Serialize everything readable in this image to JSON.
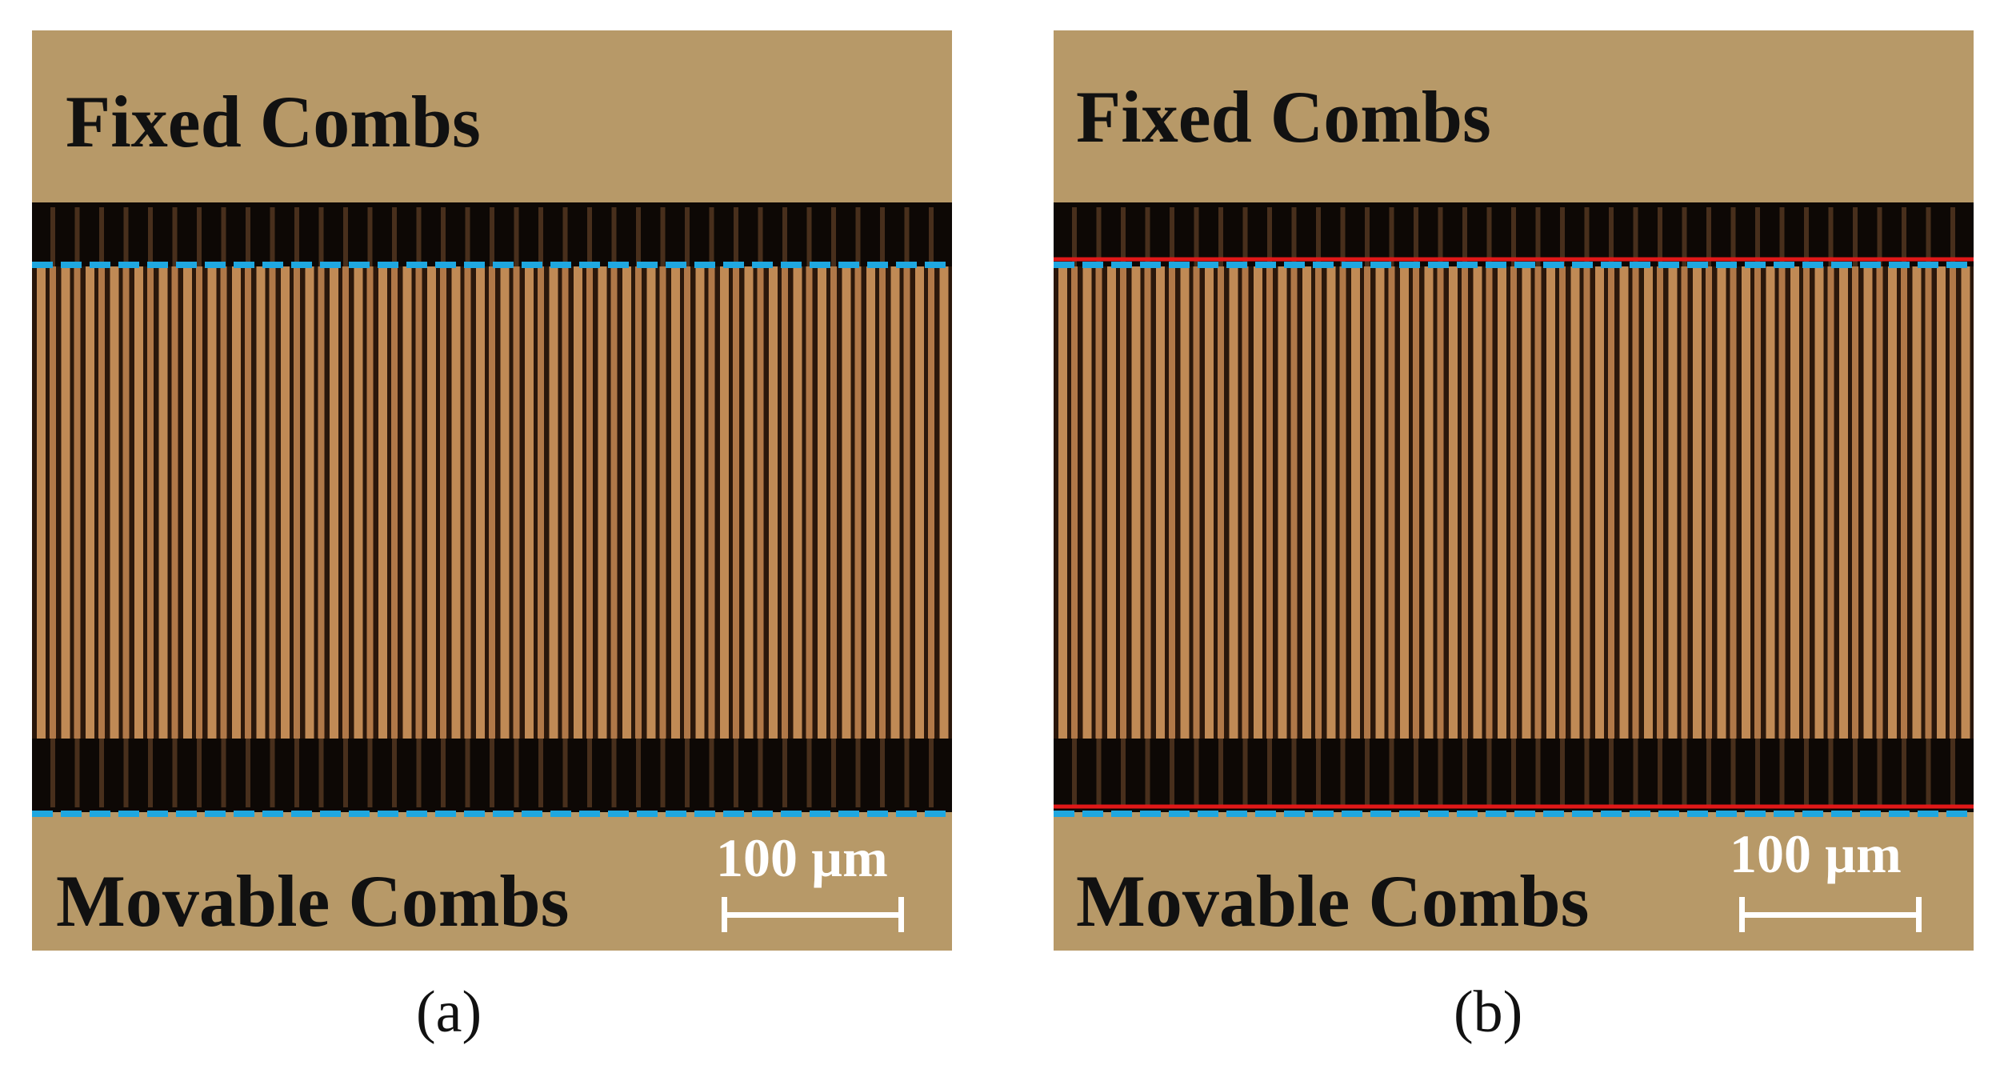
{
  "figure": {
    "panels": [
      {
        "id": "a",
        "top_label": "Fixed Combs",
        "bottom_label": "Movable Combs",
        "scale_bar_label": "100 µm",
        "caption": "(a)",
        "reference_lines": [
          "blue-dashed"
        ]
      },
      {
        "id": "b",
        "top_label": "Fixed Combs",
        "bottom_label": "Movable Combs",
        "scale_bar_label": "100 µm",
        "caption": "(b)",
        "reference_lines": [
          "blue-dashed",
          "red-solid"
        ]
      }
    ],
    "colors": {
      "background": "#b79968",
      "comb_dark": "#0d0805",
      "finger_light": "#c08a55",
      "dashed_line": "#1fa7e0",
      "solid_line": "#e01818",
      "scale_bar": "#ffffff"
    }
  }
}
